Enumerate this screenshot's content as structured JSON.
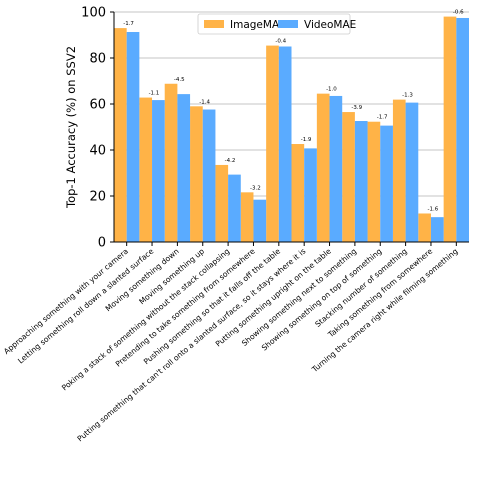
{
  "chart_data": {
    "type": "bar",
    "ylabel": "Top-1 Accuracy (%) on SSV2",
    "xlabel": "",
    "ylim": [
      0,
      100
    ],
    "yticks": [
      0,
      20,
      40,
      60,
      80,
      100
    ],
    "grid": "horizontal",
    "legend_position": "top-center",
    "categories": [
      "Approaching something with your camera",
      "Letting something roll down a slanted surface",
      "Moving something down",
      "Moving something up",
      "Poking a stack of something without the stack collapsing",
      "Pretending to take something from somewhere",
      "Pushing something so that it falls off the table",
      "Putting something that can't roll onto a slanted surface, so it stays where it is",
      "Putting something upright on the table",
      "Showing something next to something",
      "Showing something on top of something",
      "Stacking number of something",
      "Taking something from somewhere",
      "Turning the camera right while filming something"
    ],
    "series": [
      {
        "name": "ImageMAE",
        "color": "#ffb347",
        "values": [
          93.0,
          62.8,
          68.8,
          59.0,
          33.5,
          21.6,
          85.4,
          42.6,
          64.5,
          56.5,
          52.3,
          61.9,
          12.4,
          98.0
        ]
      },
      {
        "name": "VideoMAE",
        "color": "#5aabff",
        "values": [
          91.3,
          61.7,
          64.3,
          57.6,
          29.3,
          18.4,
          85.0,
          40.7,
          63.5,
          52.6,
          50.6,
          60.6,
          10.8,
          97.4
        ]
      }
    ],
    "annotations": [
      "-1.7",
      "-1.1",
      "-4.5",
      "-1.4",
      "-4.2",
      "-3.2",
      "-0.4",
      "-1.9",
      "-1.0",
      "-3.9",
      "-1.7",
      "-1.3",
      "-1.6",
      "-0.6"
    ]
  }
}
